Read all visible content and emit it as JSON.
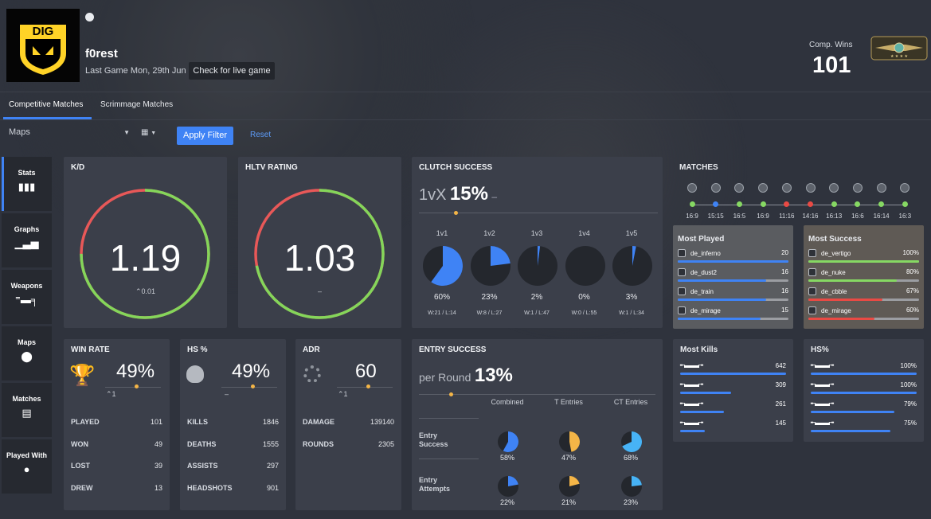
{
  "player": {
    "name": "f0rest",
    "last_game": "Last Game Mon, 29th Jun",
    "live_btn": "Check for live game",
    "team_logo": "DIG"
  },
  "comp": {
    "label": "Comp. Wins",
    "value": "101",
    "badge": "rank-badge-icon"
  },
  "tabs": [
    "Competitive Matches",
    "Scrimmage Matches"
  ],
  "filters": {
    "maps": "Maps",
    "apply": "Apply Filter",
    "reset": "Reset"
  },
  "sidebar": [
    {
      "label": "Stats",
      "icon": "bar-chart-icon"
    },
    {
      "label": "Graphs",
      "icon": "graph-icon"
    },
    {
      "label": "Weapons",
      "icon": "rifle-icon"
    },
    {
      "label": "Maps",
      "icon": "map-pin-icon"
    },
    {
      "label": "Matches",
      "icon": "list-icon"
    },
    {
      "label": "Played With",
      "icon": "user-icon"
    }
  ],
  "kd": {
    "title": "K/D",
    "value": "1.19",
    "delta": "0.01",
    "fraction": 0.75
  },
  "hltv": {
    "title": "HLTV RATING",
    "value": "1.03",
    "delta": "–",
    "fraction": 0.72
  },
  "clutch": {
    "title": "CLUTCH SUCCESS",
    "prefix": "1vX",
    "value": "15%",
    "suffix": "–",
    "items": [
      {
        "label": "1v1",
        "pct": "60%",
        "wl": "W:21 / L:14",
        "frac": 0.6
      },
      {
        "label": "1v2",
        "pct": "23%",
        "wl": "W:8 / L:27",
        "frac": 0.23
      },
      {
        "label": "1v3",
        "pct": "2%",
        "wl": "W:1 / L:47",
        "frac": 0.02
      },
      {
        "label": "1v4",
        "pct": "0%",
        "wl": "W:0 / L:55",
        "frac": 0
      },
      {
        "label": "1v5",
        "pct": "3%",
        "wl": "W:1 / L:34",
        "frac": 0.03
      }
    ]
  },
  "matches": {
    "title": "MATCHES",
    "scores": [
      "16:9",
      "15:15",
      "16:5",
      "16:9",
      "11:16",
      "14:16",
      "16:13",
      "16:6",
      "16:14",
      "16:3"
    ],
    "results": [
      "win",
      "draw",
      "win",
      "win",
      "loss",
      "loss",
      "win",
      "win",
      "win",
      "win"
    ],
    "colors": {
      "win": "#86d863",
      "draw": "#3f83f5",
      "loss": "#e94a44"
    }
  },
  "most_played": {
    "title": "Most Played",
    "rows": [
      {
        "map": "de_inferno",
        "value": "20",
        "frac": 1
      },
      {
        "map": "de_dust2",
        "value": "16",
        "frac": 0.8
      },
      {
        "map": "de_train",
        "value": "16",
        "frac": 0.8
      },
      {
        "map": "de_mirage",
        "value": "15",
        "frac": 0.75
      }
    ]
  },
  "most_success": {
    "title": "Most Success",
    "rows": [
      {
        "map": "de_vertigo",
        "value": "100%",
        "frac": 1
      },
      {
        "map": "de_nuke",
        "value": "80%",
        "frac": 0.8
      },
      {
        "map": "de_cbble",
        "value": "67%",
        "frac": 0.67
      },
      {
        "map": "de_mirage",
        "value": "60%",
        "frac": 0.6
      }
    ]
  },
  "winrate": {
    "title": "WIN RATE",
    "value": "49%",
    "delta": "1",
    "rows": [
      [
        "PLAYED",
        "101"
      ],
      [
        "WON",
        "49"
      ],
      [
        "LOST",
        "39"
      ],
      [
        "DREW",
        "13"
      ]
    ]
  },
  "hs": {
    "title": "HS %",
    "value": "49%",
    "delta": "–",
    "rows": [
      [
        "KILLS",
        "1846"
      ],
      [
        "DEATHS",
        "1555"
      ],
      [
        "ASSISTS",
        "297"
      ],
      [
        "HEADSHOTS",
        "901"
      ]
    ]
  },
  "adr": {
    "title": "ADR",
    "value": "60",
    "delta": "1",
    "rows": [
      [
        "DAMAGE",
        "139140"
      ],
      [
        "ROUNDS",
        "2305"
      ]
    ]
  },
  "entry": {
    "title": "ENTRY SUCCESS",
    "prefix": "per Round",
    "value": "13%",
    "cols": [
      "Combined",
      "T Entries",
      "CT Entries"
    ],
    "rows": [
      {
        "label": "Entry Success",
        "vals": [
          "58%",
          "47%",
          "68%"
        ],
        "fracs": [
          0.58,
          0.47,
          0.68
        ]
      },
      {
        "label": "Entry Attempts",
        "vals": [
          "22%",
          "21%",
          "23%"
        ],
        "fracs": [
          0.22,
          0.21,
          0.23
        ]
      }
    ],
    "colors": [
      "#3f83f5",
      "#f4b547",
      "#47b3f6"
    ]
  },
  "kills": {
    "title": "Most Kills",
    "rows": [
      {
        "value": "642",
        "frac": 1
      },
      {
        "value": "309",
        "frac": 0.48
      },
      {
        "value": "261",
        "frac": 0.41
      },
      {
        "value": "145",
        "frac": 0.23
      }
    ]
  },
  "hspct": {
    "title": "HS%",
    "rows": [
      {
        "value": "100%",
        "frac": 1
      },
      {
        "value": "100%",
        "frac": 1
      },
      {
        "value": "79%",
        "frac": 0.79
      },
      {
        "value": "75%",
        "frac": 0.75
      }
    ]
  }
}
